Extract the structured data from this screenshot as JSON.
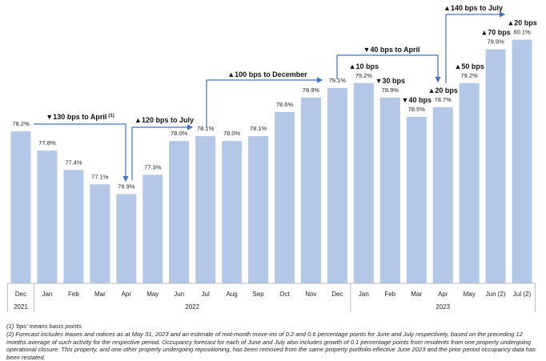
{
  "chart_data": {
    "type": "bar",
    "title": "",
    "categories": [
      "Dec",
      "Jan",
      "Feb",
      "Mar",
      "Apr",
      "May",
      "Jun",
      "Jul",
      "Aug",
      "Sep",
      "Oct",
      "Nov",
      "Dec",
      "Jan",
      "Feb",
      "Mar",
      "Apr",
      "May",
      "Jun (2)",
      "Jul (2)"
    ],
    "years": [
      {
        "label": "2021",
        "from": 0,
        "to": 0
      },
      {
        "label": "2022",
        "from": 1,
        "to": 12
      },
      {
        "label": "2023",
        "from": 13,
        "to": 19
      }
    ],
    "values": [
      78.2,
      77.8,
      77.4,
      77.1,
      76.9,
      77.3,
      78.0,
      78.1,
      78.0,
      78.1,
      78.6,
      78.9,
      79.1,
      79.2,
      78.9,
      78.5,
      78.7,
      79.2,
      79.9,
      80.1
    ],
    "value_labels": [
      "78.2%",
      "77.8%",
      "77.4%",
      "77.1%",
      "76.9%",
      "77.3%",
      "78.0%",
      "78.1%",
      "78.0%",
      "78.1%",
      "78.6%",
      "78.9%",
      "79.1%",
      "79.2%",
      "78.9%",
      "78.5%",
      "78.7%",
      "79.2%",
      "79.9%",
      "80.1%"
    ],
    "ylim": [
      75.05,
      80.5
    ],
    "bar_color": "#b4c7e7",
    "arrow_color": "#4472c4",
    "change_labels": [
      {
        "index": 13,
        "text": "▲10 bps"
      },
      {
        "index": 14,
        "text": "▼30 bps"
      },
      {
        "index": 15,
        "text": "▼40 bps"
      },
      {
        "index": 16,
        "text": "▲20 bps"
      },
      {
        "index": 17,
        "text": "▲50 bps"
      },
      {
        "index": 18,
        "text": "▲70 bps"
      },
      {
        "index": 19,
        "text": "▲20 bps"
      }
    ],
    "range_annotations": [
      {
        "from": 0,
        "to": 4,
        "text": "▼130 bps to April",
        "sup": "(1)"
      },
      {
        "from": 4,
        "to": 7,
        "text": "▲120 bps to July",
        "sup": ""
      },
      {
        "from": 7,
        "to": 12,
        "text": "▲100 bps to December",
        "sup": ""
      },
      {
        "from": 12,
        "to": 16,
        "text": "▼40 bps to April",
        "sup": ""
      },
      {
        "from": 16,
        "to": 19,
        "text": "▲140 bps to July",
        "sup": ""
      }
    ]
  },
  "footnotes": {
    "note1": "(1) 'bps' means basis points.",
    "note2": "(2) Forecast includes leases and notices as at May 31, 2023 and an estimate of mid-month move-ins of 0.2 and 0.6 percentage points for June and July respectively, based on the preceding 12 months average of such activity for the respective period. Occupancy forecast for each of June and July also includes growth of 0.1 percentage points from residents from one property undergoing operational closure. This property, and one other property undergoing repositioning, has been removed from the same property portfolio effective June 2023 and the prior period occupancy data has been restated."
  }
}
